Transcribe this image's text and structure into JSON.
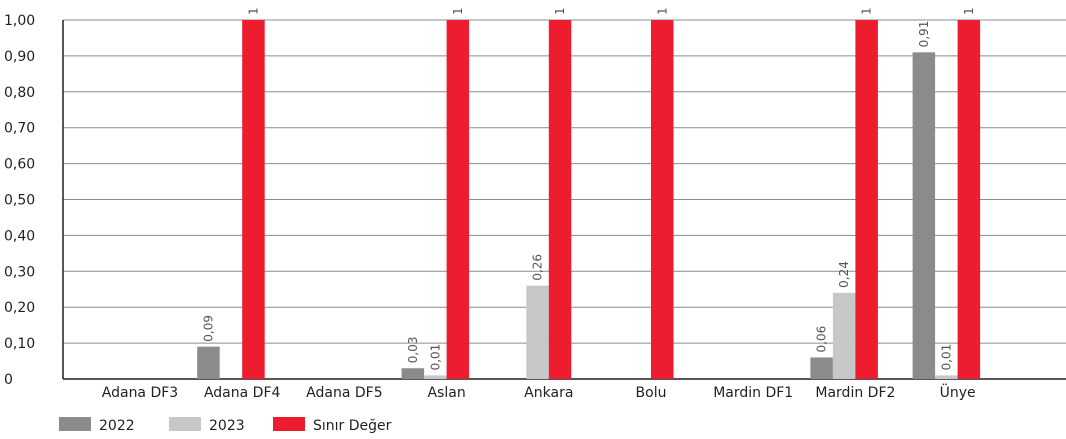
{
  "chart_data": {
    "type": "bar",
    "categories": [
      "Adana DF3",
      "Adana DF4",
      "Adana DF5",
      "Aslan",
      "Ankara",
      "Bolu",
      "Mardin DF1",
      "Mardin DF2",
      "Ünye"
    ],
    "series": [
      {
        "name": "2022",
        "color": "#8a8b8d",
        "values": [
          null,
          0.09,
          null,
          0.03,
          null,
          null,
          null,
          0.06,
          0.91
        ],
        "labels": [
          null,
          "0,09",
          null,
          "0,03",
          null,
          null,
          null,
          "0,06",
          "0,91"
        ]
      },
      {
        "name": "2023",
        "color": "#c6c7c8",
        "values": [
          null,
          null,
          null,
          0.01,
          0.26,
          null,
          null,
          0.24,
          0.01
        ],
        "labels": [
          null,
          null,
          null,
          "0,01",
          "0,26",
          null,
          null,
          "0,24",
          "0,01"
        ]
      },
      {
        "name": "Sınır Değer",
        "color": "#ed1c2e",
        "values": [
          null,
          1,
          null,
          1,
          1,
          1,
          null,
          1,
          1
        ],
        "labels": [
          null,
          "1",
          null,
          "1",
          "1",
          "1",
          null,
          "1",
          "1"
        ]
      }
    ],
    "y_ticks": [
      "0",
      "0,10",
      "0,20",
      "0,30",
      "0,40",
      "0,50",
      "0,60",
      "0,70",
      "0,80",
      "0,90",
      "1,00"
    ],
    "ylim": [
      0,
      1
    ],
    "grid": true,
    "legend_position": "bottom-left",
    "title": "",
    "xlabel": "",
    "ylabel": ""
  }
}
